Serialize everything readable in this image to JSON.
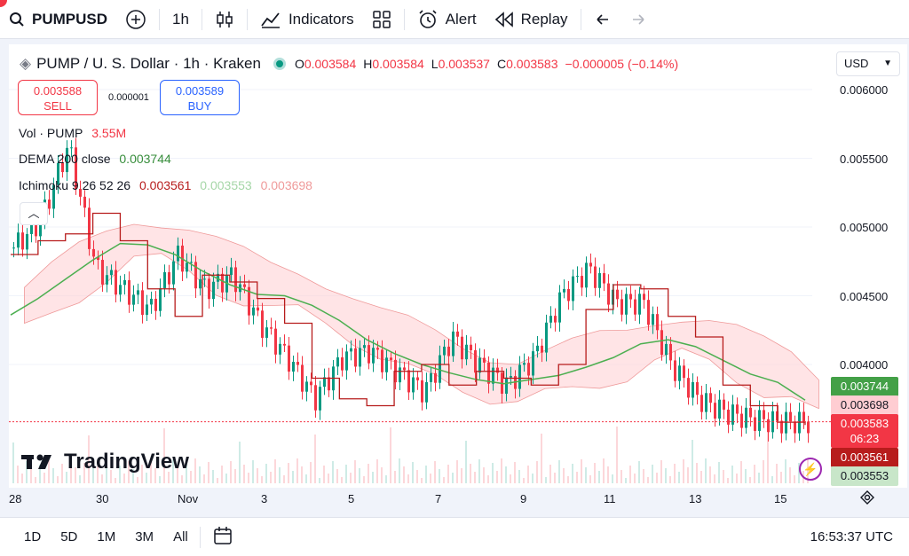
{
  "toolbar": {
    "symbol": "PUMPUSD",
    "interval": "1h",
    "indicators_label": "Indicators",
    "alert_label": "Alert",
    "replay_label": "Replay"
  },
  "legend": {
    "title": "PUMP / U. S. Dollar · 1h · Kraken",
    "open_label": "O",
    "open": "0.003584",
    "high_label": "H",
    "high": "0.003584",
    "low_label": "L",
    "low": "0.003537",
    "close_label": "C",
    "close": "0.003583",
    "change": "−0.000005 (−0.14%)"
  },
  "trade": {
    "sell_price": "0.003588",
    "sell_label": "SELL",
    "spread": "0.000001",
    "buy_price": "0.003589",
    "buy_label": "BUY"
  },
  "indicators": {
    "vol_label": "Vol · PUMP",
    "vol_value": "3.55M",
    "dema_label": "DEMA 200 close",
    "dema_value": "0.003744",
    "ichimoku_label": "Ichimoku 9 26 52 26",
    "ichimoku_v1": "0.003561",
    "ichimoku_v2": "0.003553",
    "ichimoku_v3": "0.003698"
  },
  "currency": "USD",
  "price_axis": [
    "0.006000",
    "0.005500",
    "0.005000",
    "0.004500",
    "0.004000"
  ],
  "price_tags": {
    "dema": "0.003744",
    "ich_lead_b": "0.003698",
    "last": "0.003583",
    "countdown": "06:23",
    "ich_base": "0.003561",
    "ich_lead_a": "0.003553"
  },
  "time_axis": [
    "28",
    "30",
    "Nov",
    "3",
    "5",
    "7",
    "9",
    "11",
    "13",
    "15"
  ],
  "watermark": "TradingView",
  "bottom": {
    "ranges": [
      "1D",
      "5D",
      "1M",
      "3M",
      "All"
    ],
    "clock": "16:53:37 UTC"
  },
  "colors": {
    "up": "#089981",
    "down": "#f23645",
    "dema": "#4caf50",
    "ich_conversion": "#b71c1c",
    "cloud_bull": "#c8e6c9",
    "cloud_bear": "#ffcdd2"
  },
  "chart_data": {
    "type": "candlestick",
    "timeframe": "1h",
    "ylim": [
      0.0034,
      0.0061
    ],
    "dema_200": [
      0.00436,
      0.00448,
      0.00462,
      0.00476,
      0.00488,
      0.00487,
      0.0048,
      0.00468,
      0.00458,
      0.00451,
      0.0045,
      0.00443,
      0.00432,
      0.00418,
      0.00408,
      0.004,
      0.00394,
      0.00389,
      0.00386,
      0.00389,
      0.00392,
      0.00398,
      0.00405,
      0.00415,
      0.00418,
      0.00413,
      0.00403,
      0.00393,
      0.00387,
      0.00374
    ],
    "ichimoku_conversion": [
      0.0048,
      0.0049,
      0.00495,
      0.0051,
      0.0049,
      0.00455,
      0.00435,
      0.00465,
      0.0046,
      0.00448,
      0.0043,
      0.0039,
      0.00375,
      0.0037,
      0.00395,
      0.004,
      0.00385,
      0.00395,
      0.0039,
      0.00385,
      0.004,
      0.0044,
      0.00458,
      0.00455,
      0.00435,
      0.0042,
      0.00385,
      0.0037,
      0.00358,
      0.00356
    ],
    "close_series": [
      0.00485,
      0.00505,
      0.0056,
      0.0047,
      0.00455,
      0.0044,
      0.0048,
      0.00455,
      0.00465,
      0.0043,
      0.00405,
      0.00375,
      0.00405,
      0.0041,
      0.00395,
      0.0038,
      0.0042,
      0.004,
      0.00385,
      0.00405,
      0.0045,
      0.0047,
      0.00445,
      0.00445,
      0.004,
      0.00375,
      0.00365,
      0.0036,
      0.00358,
      0.00358
    ]
  }
}
